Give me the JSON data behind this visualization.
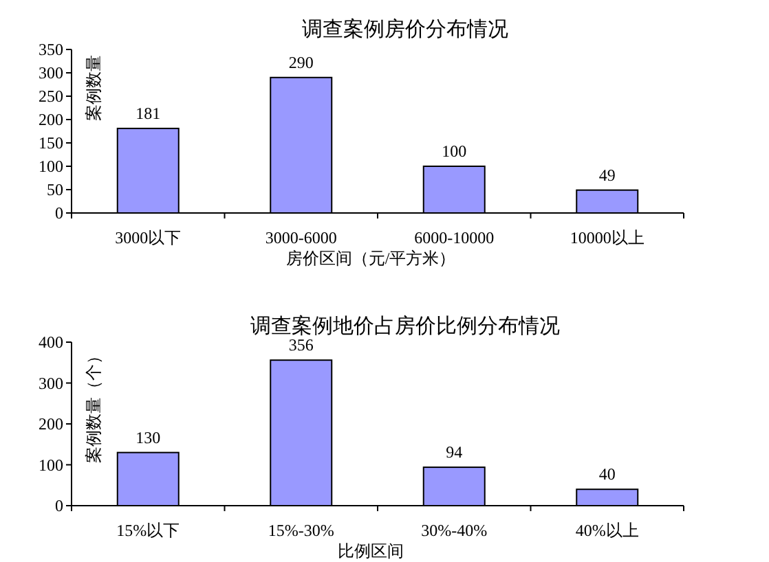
{
  "chart_data": [
    {
      "type": "bar",
      "title": "调查案例房价分布情况",
      "xlabel": "房价区间（元/平方米）",
      "ylabel": "案例数量",
      "categories": [
        "3000以下",
        "3000-6000",
        "6000-10000",
        "10000以上"
      ],
      "values": [
        181,
        290,
        100,
        49
      ],
      "color": "#9999ff",
      "ylim": [
        0,
        350
      ],
      "yticks": [
        0,
        50,
        100,
        150,
        200,
        250,
        300,
        350
      ],
      "data_labels": true
    },
    {
      "type": "bar",
      "title": "调查案例地价占房价比例分布情况",
      "xlabel": "比例区间",
      "ylabel": "案例数量（个）",
      "categories": [
        "15%以下",
        "15%-30%",
        "30%-40%",
        "40%以上"
      ],
      "values": [
        130,
        356,
        94,
        40
      ],
      "color": "#9999ff",
      "ylim": [
        0,
        400
      ],
      "yticks": [
        0,
        100,
        200,
        300,
        400
      ],
      "data_labels": true
    }
  ]
}
